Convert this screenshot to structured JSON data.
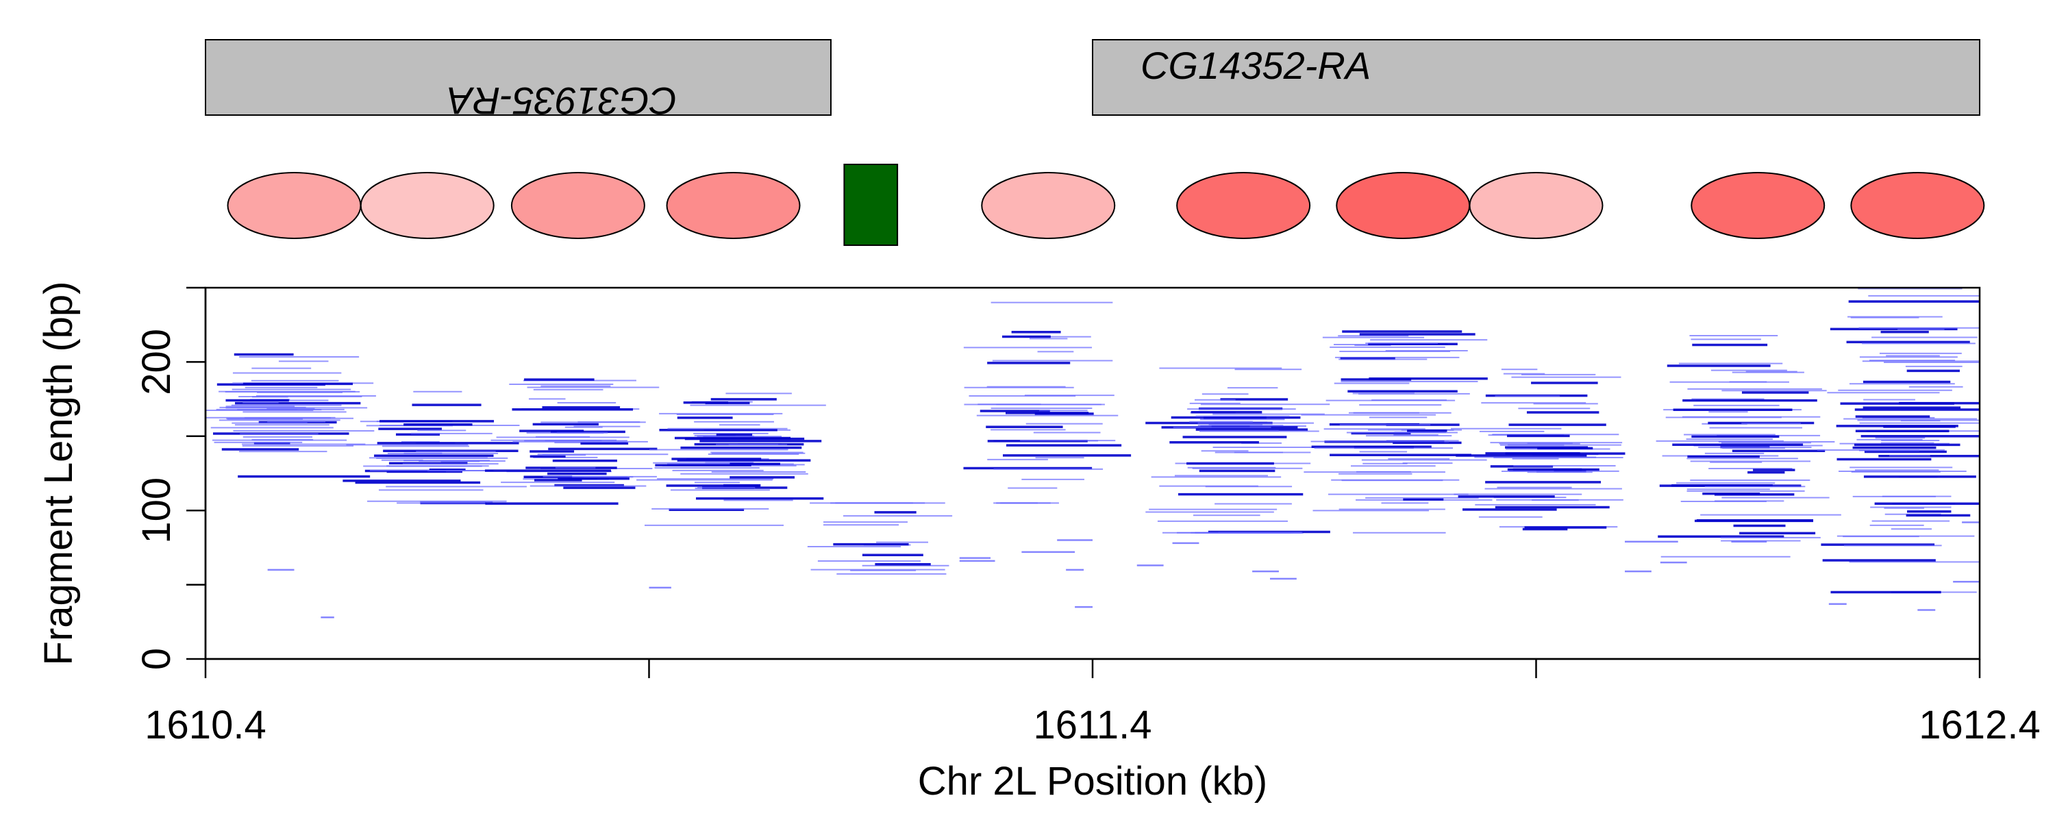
{
  "chart_data": {
    "type": "scatter",
    "description_units": "x in kb on Chr 2L, y fragment length in bp; each fragment is a horizontal segment spanning [x_start, x_end] at height y",
    "xlabel": "Chr 2L Position (kb)",
    "ylabel": "Fragment Length (bp)",
    "xlim": [
      1610.4,
      1612.4
    ],
    "ylim": [
      0,
      250
    ],
    "x_ticks": [
      1610.4,
      1610.9,
      1611.4,
      1611.9,
      1612.4
    ],
    "x_tick_labels": [
      "1610.4",
      "",
      "1611.4",
      "",
      "1612.4"
    ],
    "y_ticks": [
      0,
      50,
      100,
      150,
      200,
      250
    ],
    "y_tick_labels": [
      "0",
      "",
      "100",
      "",
      "200",
      ""
    ],
    "genes": [
      {
        "name": "CG31935-RA",
        "start": 1610.4,
        "end": 1611.105,
        "strand": "-"
      },
      {
        "name": "CG14352-RA",
        "start": 1611.4,
        "end": 1612.4,
        "strand": "+"
      }
    ],
    "nucleosomes": [
      {
        "center": 1610.5,
        "color": "#fca5a5"
      },
      {
        "center": 1610.65,
        "color": "#fdc4c4"
      },
      {
        "center": 1610.82,
        "color": "#fc9a9a"
      },
      {
        "center": 1610.995,
        "color": "#fc8c8c"
      },
      {
        "center": 1611.35,
        "color": "#fdb5b5"
      },
      {
        "center": 1611.57,
        "color": "#fc6c6c"
      },
      {
        "center": 1611.75,
        "color": "#fc6464"
      },
      {
        "center": 1611.9,
        "color": "#fdbaba"
      },
      {
        "center": 1612.15,
        "color": "#fc6a6a"
      },
      {
        "center": 1612.33,
        "color": "#fc6a6a"
      }
    ],
    "tf_sites": [
      {
        "start": 1611.12,
        "end": 1611.18,
        "color": "#006400"
      }
    ],
    "fragment_clusters": [
      {
        "center": 1610.49,
        "y_min": 110,
        "y_max": 205,
        "n": 55,
        "focus": 165
      },
      {
        "center": 1610.655,
        "y_min": 105,
        "y_max": 180,
        "n": 45,
        "focus": 140
      },
      {
        "center": 1610.82,
        "y_min": 100,
        "y_max": 190,
        "n": 55,
        "focus": 140
      },
      {
        "center": 1610.995,
        "y_min": 90,
        "y_max": 185,
        "n": 60,
        "focus": 140
      },
      {
        "center": 1611.155,
        "y_min": 30,
        "y_max": 105,
        "n": 18,
        "focus": 80
      },
      {
        "center": 1611.34,
        "y_min": 105,
        "y_max": 240,
        "n": 40,
        "focus": 165
      },
      {
        "center": 1611.565,
        "y_min": 85,
        "y_max": 215,
        "n": 60,
        "focus": 140
      },
      {
        "center": 1611.745,
        "y_min": 85,
        "y_max": 235,
        "n": 70,
        "focus": 160
      },
      {
        "center": 1611.9,
        "y_min": 70,
        "y_max": 195,
        "n": 55,
        "focus": 130
      },
      {
        "center": 1612.14,
        "y_min": 60,
        "y_max": 225,
        "n": 70,
        "focus": 145
      },
      {
        "center": 1612.32,
        "y_min": 45,
        "y_max": 250,
        "n": 80,
        "focus": 155
      }
    ],
    "sparse_fragments": [
      {
        "x_start": 1610.47,
        "x_end": 1610.5,
        "y": 60
      },
      {
        "x_start": 1610.53,
        "x_end": 1610.545,
        "y": 28
      },
      {
        "x_start": 1610.9,
        "x_end": 1610.925,
        "y": 48
      },
      {
        "x_start": 1611.25,
        "x_end": 1611.285,
        "y": 68
      },
      {
        "x_start": 1611.25,
        "x_end": 1611.29,
        "y": 66
      },
      {
        "x_start": 1611.32,
        "x_end": 1611.38,
        "y": 72
      },
      {
        "x_start": 1611.36,
        "x_end": 1611.4,
        "y": 80
      },
      {
        "x_start": 1611.37,
        "x_end": 1611.39,
        "y": 60
      },
      {
        "x_start": 1611.38,
        "x_end": 1611.4,
        "y": 35
      },
      {
        "x_start": 1611.45,
        "x_end": 1611.48,
        "y": 63
      },
      {
        "x_start": 1611.49,
        "x_end": 1611.52,
        "y": 78
      },
      {
        "x_start": 1611.6,
        "x_end": 1611.63,
        "y": 54
      },
      {
        "x_start": 1611.58,
        "x_end": 1611.61,
        "y": 59
      },
      {
        "x_start": 1612.0,
        "x_end": 1612.03,
        "y": 59
      },
      {
        "x_start": 1612.04,
        "x_end": 1612.07,
        "y": 65
      },
      {
        "x_start": 1612.0,
        "x_end": 1612.06,
        "y": 79
      },
      {
        "x_start": 1612.12,
        "x_end": 1612.16,
        "y": 79
      },
      {
        "x_start": 1612.23,
        "x_end": 1612.25,
        "y": 37
      },
      {
        "x_start": 1612.33,
        "x_end": 1612.35,
        "y": 33
      },
      {
        "x_start": 1612.37,
        "x_end": 1612.4,
        "y": 52
      },
      {
        "x_start": 1612.38,
        "x_end": 1612.4,
        "y": 92
      }
    ]
  }
}
